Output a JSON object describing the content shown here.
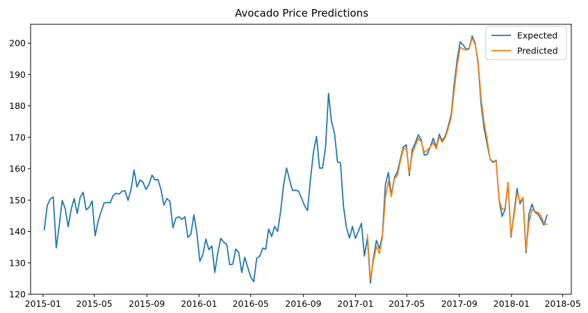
{
  "chart_data": {
    "type": "line",
    "title": "Avocado Price Predictions",
    "xlabel": "",
    "ylabel": "",
    "xlim": [
      "2014-12-03",
      "2018-05-21"
    ],
    "ylim": [
      120,
      206
    ],
    "grid": false,
    "legend_position": "top-right",
    "x_ticks": [
      "2015-01",
      "2015-05",
      "2015-09",
      "2016-01",
      "2016-05",
      "2016-09",
      "2017-01",
      "2017-05",
      "2017-09",
      "2018-01",
      "2018-05"
    ],
    "y_ticks": [
      120,
      130,
      140,
      150,
      160,
      170,
      180,
      190,
      200
    ],
    "series": [
      {
        "name": "Expected",
        "color": "#1f77b4",
        "x": [
          "2015-01-04",
          "2015-01-11",
          "2015-01-18",
          "2015-01-25",
          "2015-02-01",
          "2015-02-08",
          "2015-02-15",
          "2015-02-22",
          "2015-03-01",
          "2015-03-08",
          "2015-03-15",
          "2015-03-22",
          "2015-03-29",
          "2015-04-05",
          "2015-04-12",
          "2015-04-19",
          "2015-04-26",
          "2015-05-03",
          "2015-05-10",
          "2015-05-17",
          "2015-05-24",
          "2015-05-31",
          "2015-06-07",
          "2015-06-14",
          "2015-06-21",
          "2015-06-28",
          "2015-07-05",
          "2015-07-12",
          "2015-07-19",
          "2015-07-26",
          "2015-08-02",
          "2015-08-09",
          "2015-08-16",
          "2015-08-23",
          "2015-08-30",
          "2015-09-06",
          "2015-09-13",
          "2015-09-20",
          "2015-09-27",
          "2015-10-04",
          "2015-10-11",
          "2015-10-18",
          "2015-10-25",
          "2015-11-01",
          "2015-11-08",
          "2015-11-15",
          "2015-11-22",
          "2015-11-29",
          "2015-12-06",
          "2015-12-13",
          "2015-12-20",
          "2015-12-27",
          "2016-01-03",
          "2016-01-10",
          "2016-01-17",
          "2016-01-24",
          "2016-01-31",
          "2016-02-07",
          "2016-02-14",
          "2016-02-21",
          "2016-02-28",
          "2016-03-06",
          "2016-03-13",
          "2016-03-20",
          "2016-03-27",
          "2016-04-03",
          "2016-04-10",
          "2016-04-17",
          "2016-04-24",
          "2016-05-01",
          "2016-05-08",
          "2016-05-15",
          "2016-05-22",
          "2016-05-29",
          "2016-06-05",
          "2016-06-12",
          "2016-06-19",
          "2016-06-26",
          "2016-07-03",
          "2016-07-10",
          "2016-07-17",
          "2016-07-24",
          "2016-07-31",
          "2016-08-07",
          "2016-08-14",
          "2016-08-21",
          "2016-08-28",
          "2016-09-04",
          "2016-09-11",
          "2016-09-18",
          "2016-09-25",
          "2016-10-02",
          "2016-10-09",
          "2016-10-16",
          "2016-10-23",
          "2016-10-30",
          "2016-11-06",
          "2016-11-13",
          "2016-11-20",
          "2016-11-27",
          "2016-12-04",
          "2016-12-11",
          "2016-12-18",
          "2016-12-25",
          "2017-01-01",
          "2017-01-08",
          "2017-01-15",
          "2017-01-22",
          "2017-01-29",
          "2017-02-05",
          "2017-02-12",
          "2017-02-19",
          "2017-02-26",
          "2017-03-05",
          "2017-03-12",
          "2017-03-19",
          "2017-03-26",
          "2017-04-02",
          "2017-04-09",
          "2017-04-16",
          "2017-04-23",
          "2017-04-30",
          "2017-05-07",
          "2017-05-14",
          "2017-05-21",
          "2017-05-28",
          "2017-06-04",
          "2017-06-11",
          "2017-06-18",
          "2017-06-25",
          "2017-07-02",
          "2017-07-09",
          "2017-07-16",
          "2017-07-23",
          "2017-07-30",
          "2017-08-06",
          "2017-08-13",
          "2017-08-20",
          "2017-08-27",
          "2017-09-03",
          "2017-09-10",
          "2017-09-17",
          "2017-09-24",
          "2017-10-01",
          "2017-10-08",
          "2017-10-15",
          "2017-10-22",
          "2017-10-29",
          "2017-11-05",
          "2017-11-12",
          "2017-11-19",
          "2017-11-26",
          "2017-12-03",
          "2017-12-10",
          "2017-12-17",
          "2017-12-24",
          "2017-12-31",
          "2018-01-07",
          "2018-01-14",
          "2018-01-21",
          "2018-01-28",
          "2018-02-04",
          "2018-02-11",
          "2018-02-18",
          "2018-02-25",
          "2018-03-04",
          "2018-03-11",
          "2018-03-18",
          "2018-03-25"
        ],
        "values": [
          140.5,
          148.3,
          150.3,
          151.0,
          134.8,
          141.9,
          149.9,
          147.3,
          141.5,
          147.1,
          150.5,
          145.7,
          150.8,
          152.5,
          146.9,
          147.7,
          149.7,
          138.6,
          143.2,
          146.3,
          149.1,
          149.3,
          149.1,
          151.4,
          152.2,
          151.9,
          152.8,
          153.0,
          149.9,
          153.4,
          159.6,
          154.2,
          156.4,
          155.7,
          153.4,
          155.0,
          158.0,
          156.4,
          156.6,
          153.4,
          148.4,
          150.5,
          149.6,
          141.2,
          144.3,
          144.7,
          143.9,
          144.7,
          138.1,
          139.1,
          145.3,
          139.5,
          130.5,
          132.6,
          137.6,
          134.2,
          135.4,
          126.9,
          133.3,
          137.8,
          136.6,
          135.8,
          129.4,
          129.6,
          134.4,
          133.3,
          126.9,
          131.8,
          128.6,
          125.5,
          124.0,
          131.5,
          132.1,
          134.7,
          134.3,
          140.8,
          138.4,
          141.6,
          140.0,
          146.5,
          154.9,
          160.2,
          156.4,
          153.0,
          153.2,
          152.8,
          150.6,
          148.2,
          146.7,
          157.0,
          165.4,
          170.3,
          160.2,
          160.2,
          166.8,
          184.0,
          175.0,
          171.3,
          162.2,
          161.8,
          148.0,
          141.2,
          137.9,
          141.6,
          137.8,
          140.1,
          142.6,
          132.2,
          137.9,
          123.6,
          131.5,
          137.2,
          134.5,
          138.7,
          154.8,
          158.8,
          151.6,
          157.1,
          159.0,
          163.0,
          167.0,
          167.6,
          157.8,
          166.2,
          168.2,
          170.8,
          169.1,
          164.3,
          164.6,
          166.9,
          169.7,
          166.7,
          171.0,
          168.9,
          170.4,
          173.5,
          177.2,
          187.0,
          194.8,
          200.4,
          199.4,
          198.1,
          198.3,
          202.3,
          200.0,
          193.5,
          180.4,
          172.8,
          167.9,
          163.0,
          162.0,
          162.7,
          150.1,
          144.8,
          147.0,
          155.3,
          138.2,
          146.0,
          153.7,
          148.8,
          150.7,
          133.2,
          145.6,
          148.7,
          146.1,
          145.5,
          143.9,
          142.0,
          145.2
        ]
      },
      {
        "name": "Predicted",
        "color": "#ff7f0e",
        "x": [
          "2017-01-29",
          "2017-02-05",
          "2017-02-12",
          "2017-02-19",
          "2017-02-26",
          "2017-03-05",
          "2017-03-12",
          "2017-03-19",
          "2017-03-26",
          "2017-04-02",
          "2017-04-09",
          "2017-04-16",
          "2017-04-23",
          "2017-04-30",
          "2017-05-07",
          "2017-05-14",
          "2017-05-21",
          "2017-05-28",
          "2017-06-04",
          "2017-06-11",
          "2017-06-18",
          "2017-06-25",
          "2017-07-02",
          "2017-07-09",
          "2017-07-16",
          "2017-07-23",
          "2017-07-30",
          "2017-08-06",
          "2017-08-13",
          "2017-08-20",
          "2017-08-27",
          "2017-09-03",
          "2017-09-10",
          "2017-09-17",
          "2017-09-24",
          "2017-10-01",
          "2017-10-08",
          "2017-10-15",
          "2017-10-22",
          "2017-10-29",
          "2017-11-05",
          "2017-11-12",
          "2017-11-19",
          "2017-11-26",
          "2017-12-03",
          "2017-12-10",
          "2017-12-17",
          "2017-12-24",
          "2017-12-31",
          "2018-01-07",
          "2018-01-14",
          "2018-01-21",
          "2018-01-28",
          "2018-02-04",
          "2018-02-11",
          "2018-02-18",
          "2018-02-25",
          "2018-03-04",
          "2018-03-11",
          "2018-03-18",
          "2018-03-25"
        ],
        "values": [
          139.0,
          124.8,
          130.5,
          135.3,
          133.0,
          138.0,
          150.8,
          156.0,
          151.1,
          156.8,
          157.8,
          162.3,
          166.3,
          166.7,
          158.6,
          164.8,
          167.3,
          169.6,
          168.6,
          165.2,
          165.9,
          166.9,
          168.3,
          166.3,
          170.2,
          168.4,
          169.9,
          172.8,
          176.3,
          185.0,
          193.0,
          198.7,
          198.1,
          197.8,
          198.1,
          201.7,
          199.6,
          194.3,
          182.3,
          174.6,
          169.3,
          163.0,
          162.4,
          162.3,
          150.2,
          147.0,
          147.5,
          155.7,
          138.8,
          145.0,
          152.3,
          149.5,
          150.9,
          134.0,
          142.9,
          147.0,
          146.3,
          146.1,
          145.0,
          142.5,
          142.3
        ]
      }
    ]
  }
}
